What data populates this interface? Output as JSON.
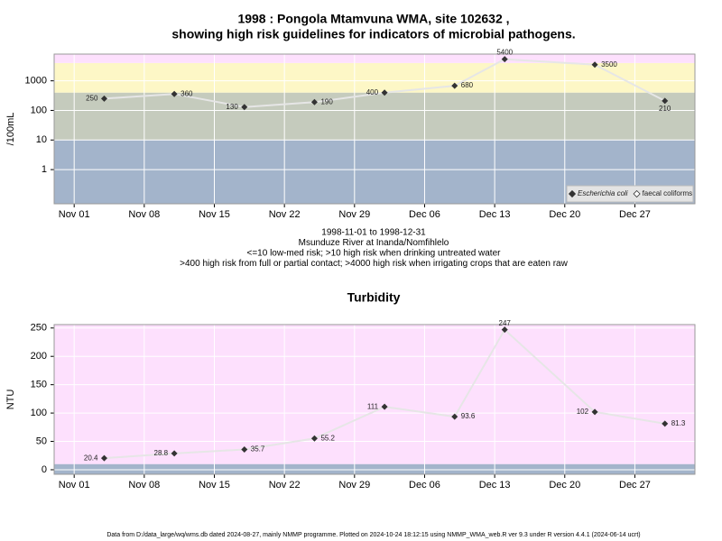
{
  "chart_data": [
    {
      "type": "line",
      "title": [
        "1998 : Pongola Mtamvuna WMA, site 102632 ,",
        "showing high risk guidelines for indicators of microbial pathogens."
      ],
      "subtitle": [
        "1998-11-01 to 1998-12-31",
        "Msunduze River at Inanda/Nomfihlelo",
        "<=10 low-med risk; >10 high risk when drinking untreated water",
        ">400 high risk from full or partial contact; >4000 high risk when irrigating crops that are eaten raw"
      ],
      "y_label": "/100mL",
      "log_scale": true,
      "grid": true,
      "legend": "bottom-right",
      "x": [
        "1998-11-04",
        "1998-11-11",
        "1998-11-18",
        "1998-11-25",
        "1998-12-02",
        "1998-12-09",
        "1998-12-14",
        "1998-12-23",
        "1998-12-30"
      ],
      "series": [
        {
          "name": "Escherichia coli",
          "color": "#333333",
          "line_color": "#e6e6e6",
          "values": [
            250,
            360,
            130,
            190,
            400,
            680,
            5400,
            3500,
            210
          ]
        },
        {
          "name": "faecal coliforms",
          "color": "#333333",
          "line_color": "#e6e6e6",
          "values": [
            null,
            null,
            null,
            null,
            null,
            null,
            null,
            null,
            null
          ]
        }
      ],
      "band_thresholds": [
        10,
        400,
        4000
      ],
      "band_colors": [
        "#a3b4cb",
        "#c5cbbd",
        "#fdf7c6",
        "#fde0fd"
      ],
      "xlim": [
        "1998-10-30",
        "1999-01-02"
      ],
      "xticks": [
        {
          "value": "1998-11-01",
          "label": "Nov 01"
        },
        {
          "value": "1998-11-08",
          "label": "Nov 08"
        },
        {
          "value": "1998-11-15",
          "label": "Nov 15"
        },
        {
          "value": "1998-11-22",
          "label": "Nov 22"
        },
        {
          "value": "1998-11-29",
          "label": "Nov 29"
        },
        {
          "value": "1998-12-06",
          "label": "Dec 06"
        },
        {
          "value": "1998-12-13",
          "label": "Dec 13"
        },
        {
          "value": "1998-12-20",
          "label": "Dec 20"
        },
        {
          "value": "1998-12-27",
          "label": "Dec 27"
        }
      ],
      "ylim": [
        0.07,
        8000
      ],
      "yticks": [
        1,
        10,
        100,
        1000
      ]
    },
    {
      "type": "line",
      "title": [
        "Turbidity"
      ],
      "y_label": "NTU",
      "log_scale": false,
      "grid": true,
      "x": [
        "1998-11-04",
        "1998-11-11",
        "1998-11-18",
        "1998-11-25",
        "1998-12-02",
        "1998-12-09",
        "1998-12-14",
        "1998-12-23",
        "1998-12-30"
      ],
      "series": [
        {
          "name": "Turbidity",
          "color": "#333333",
          "line_color": "#e6e6e6",
          "values": [
            20.4,
            28.8,
            35.7,
            55.2,
            111,
            93.6,
            247,
            102,
            81.3
          ]
        }
      ],
      "band_thresholds": [
        10
      ],
      "band_colors": [
        "#a3b4cb",
        "#fde0fd"
      ],
      "xlim": [
        "1998-10-30",
        "1999-01-02"
      ],
      "xticks": [
        {
          "value": "1998-11-01",
          "label": "Nov 01"
        },
        {
          "value": "1998-11-08",
          "label": "Nov 08"
        },
        {
          "value": "1998-11-15",
          "label": "Nov 15"
        },
        {
          "value": "1998-11-22",
          "label": "Nov 22"
        },
        {
          "value": "1998-11-29",
          "label": "Nov 29"
        },
        {
          "value": "1998-12-06",
          "label": "Dec 06"
        },
        {
          "value": "1998-12-13",
          "label": "Dec 13"
        },
        {
          "value": "1998-12-20",
          "label": "Dec 20"
        },
        {
          "value": "1998-12-27",
          "label": "Dec 27"
        }
      ],
      "ylim": [
        -8,
        256
      ],
      "yticks": [
        0,
        50,
        100,
        150,
        200,
        250
      ]
    }
  ],
  "footer": "Data from D:/data_large/wq/wms.db dated 2024-08-27, mainly NMMP programme. Plotted on 2024-10-24 18:12:15 using NMMP_WMA_web.R ver 9.3 under R version 4.4.1 (2024-06-14 ucrt)"
}
